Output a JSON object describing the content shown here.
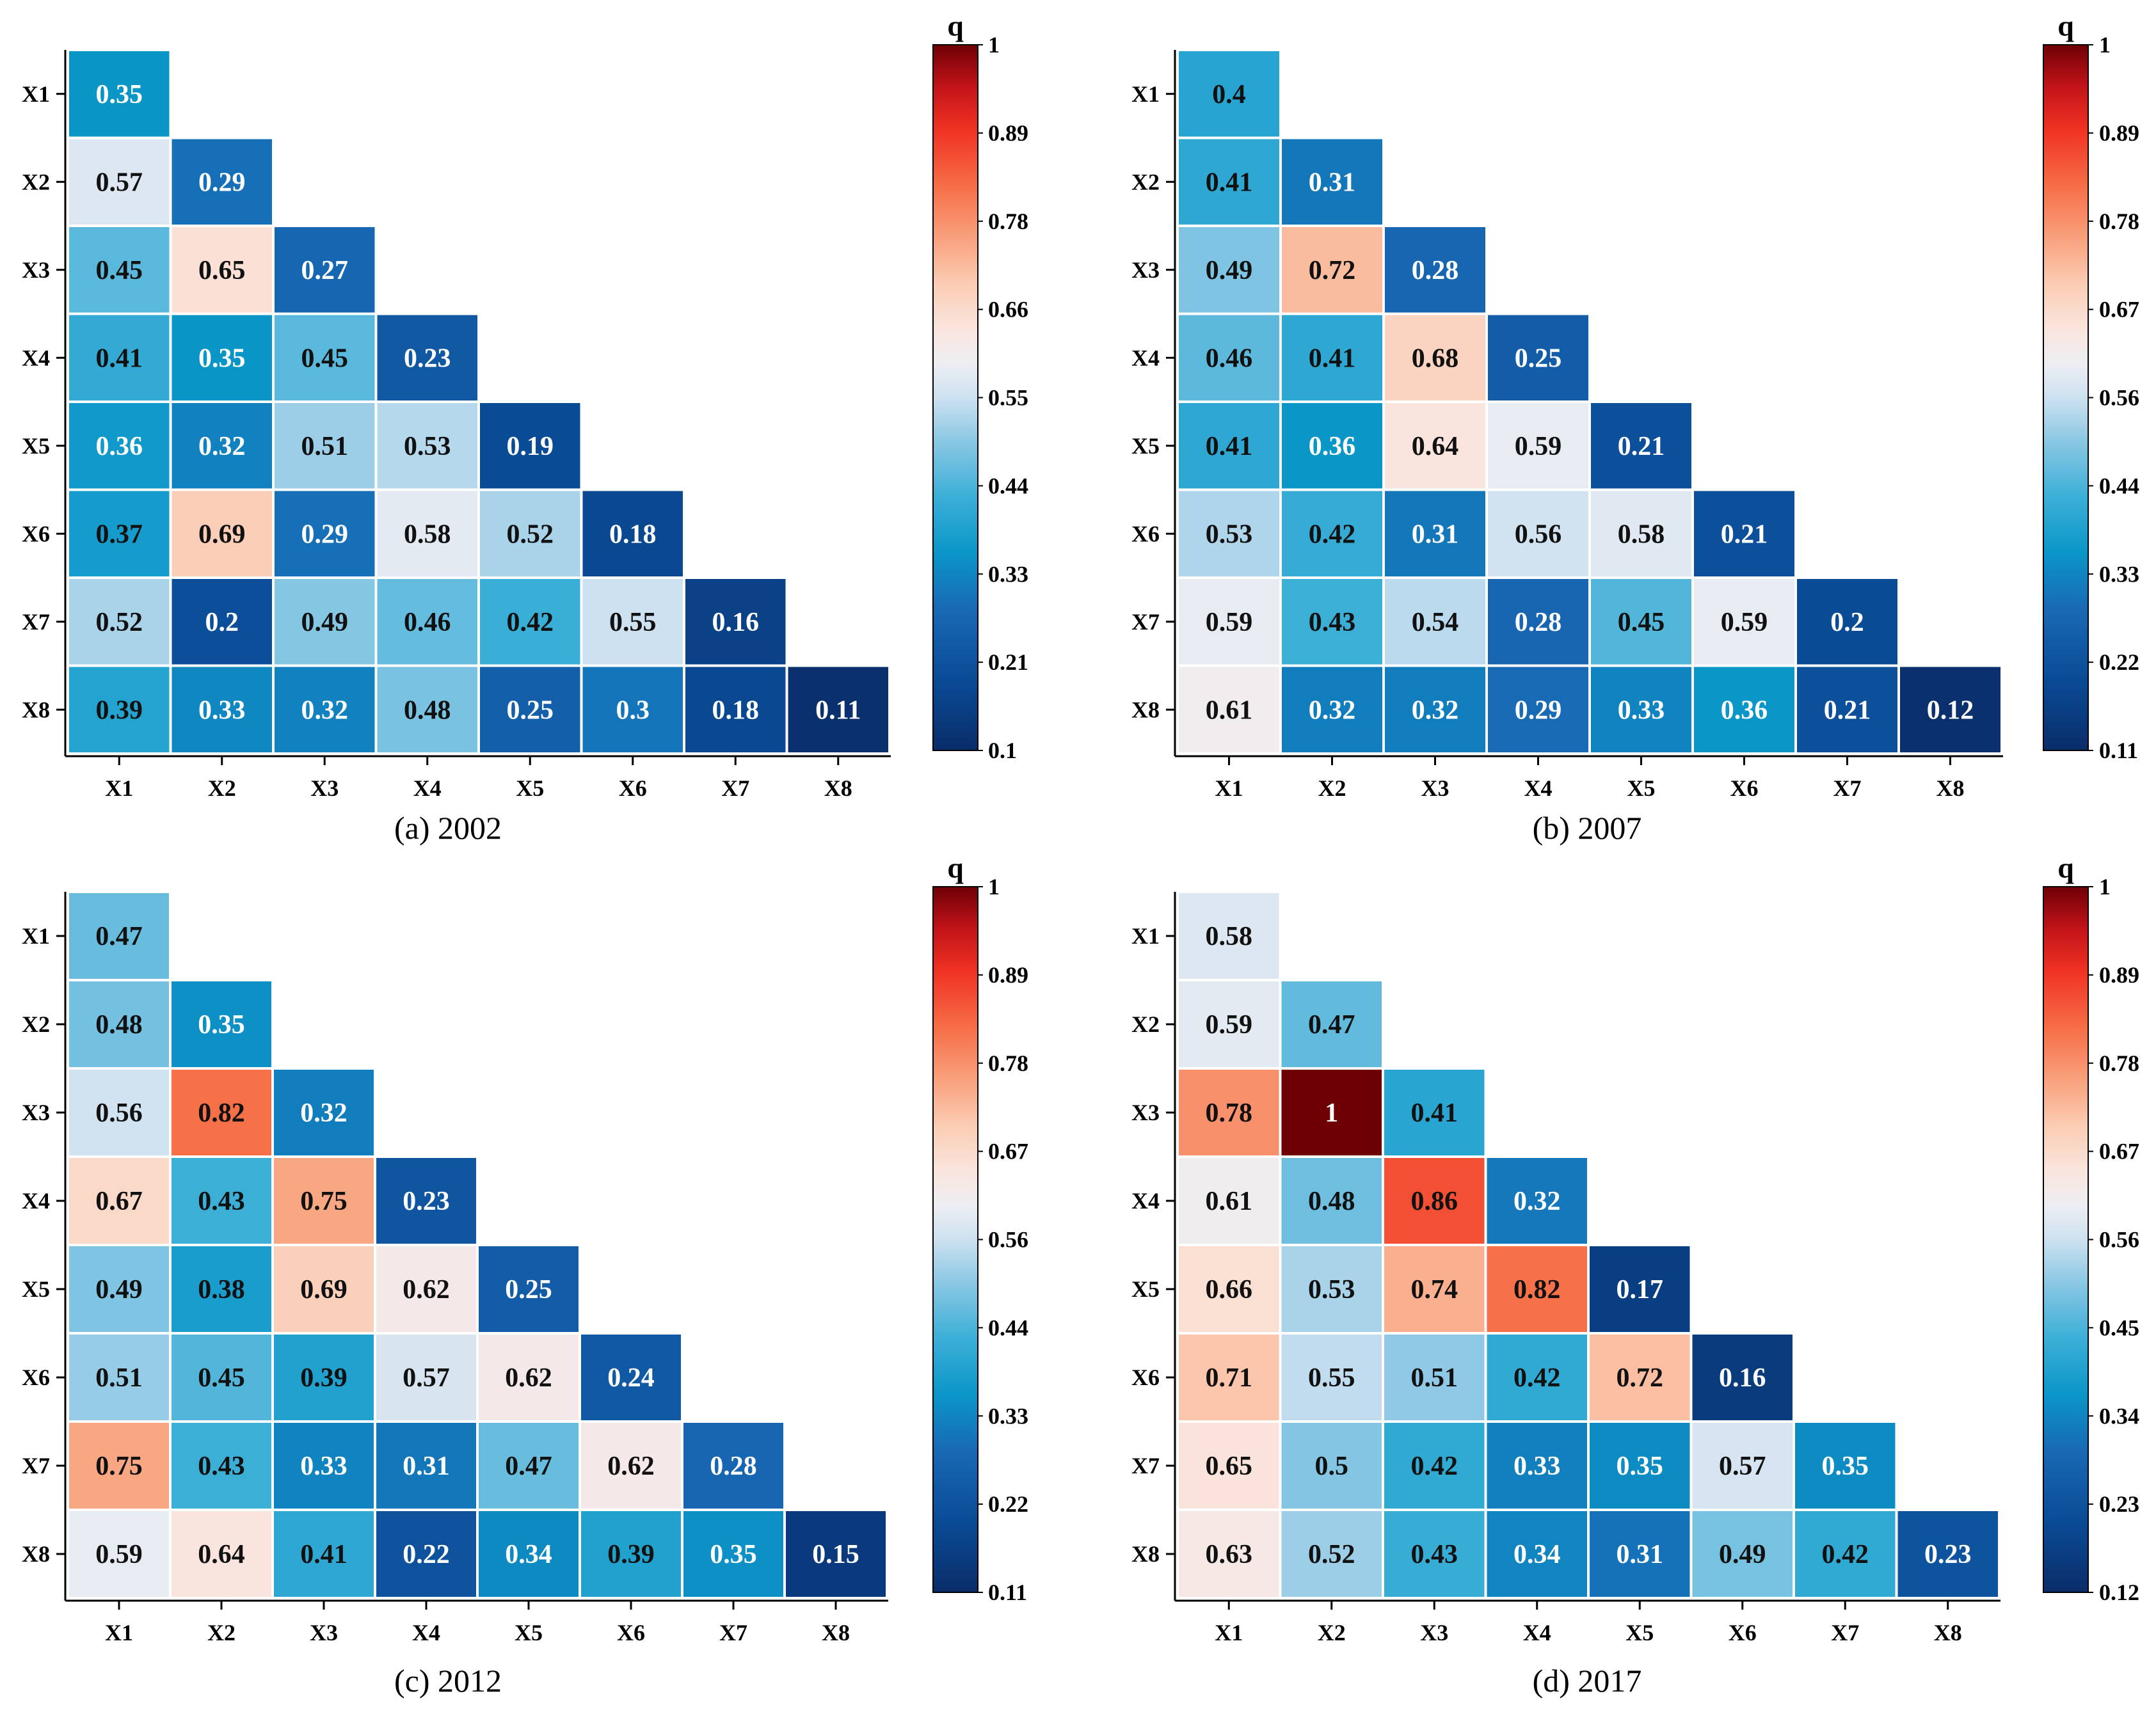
{
  "chart_data": [
    {
      "type": "heatmap",
      "title": "(a) 2002",
      "labels": [
        "X1",
        "X2",
        "X3",
        "X4",
        "X5",
        "X6",
        "X7",
        "X8"
      ],
      "values": [
        [
          0.35
        ],
        [
          0.57,
          0.29
        ],
        [
          0.45,
          0.65,
          0.27
        ],
        [
          0.41,
          0.35,
          0.45,
          0.23
        ],
        [
          0.36,
          0.32,
          0.51,
          0.53,
          0.19
        ],
        [
          0.37,
          0.69,
          0.29,
          0.58,
          0.52,
          0.18
        ],
        [
          0.52,
          0.2,
          0.49,
          0.46,
          0.42,
          0.55,
          0.16
        ],
        [
          0.39,
          0.33,
          0.32,
          0.48,
          0.25,
          0.3,
          0.18,
          0.11
        ]
      ],
      "colorbar": {
        "label": "q",
        "min": 0.1,
        "max": 1,
        "ticks": [
          "1",
          "0.89",
          "0.78",
          "0.66",
          "0.55",
          "0.44",
          "0.33",
          "0.21",
          "0.1"
        ]
      }
    },
    {
      "type": "heatmap",
      "title": "(b) 2007",
      "labels": [
        "X1",
        "X2",
        "X3",
        "X4",
        "X5",
        "X6",
        "X7",
        "X8"
      ],
      "values": [
        [
          0.4
        ],
        [
          0.41,
          0.31
        ],
        [
          0.49,
          0.72,
          0.28
        ],
        [
          0.46,
          0.41,
          0.68,
          0.25
        ],
        [
          0.41,
          0.36,
          0.64,
          0.59,
          0.21
        ],
        [
          0.53,
          0.42,
          0.31,
          0.56,
          0.58,
          0.21
        ],
        [
          0.59,
          0.43,
          0.54,
          0.28,
          0.45,
          0.59,
          0.2
        ],
        [
          0.61,
          0.32,
          0.32,
          0.29,
          0.33,
          0.36,
          0.21,
          0.12
        ]
      ],
      "colorbar": {
        "label": "q",
        "min": 0.11,
        "max": 1,
        "ticks": [
          "1",
          "0.89",
          "0.78",
          "0.67",
          "0.56",
          "0.44",
          "0.33",
          "0.22",
          "0.11"
        ]
      }
    },
    {
      "type": "heatmap",
      "title": "(c) 2012",
      "labels": [
        "X1",
        "X2",
        "X3",
        "X4",
        "X5",
        "X6",
        "X7",
        "X8"
      ],
      "values": [
        [
          0.47
        ],
        [
          0.48,
          0.35
        ],
        [
          0.56,
          0.82,
          0.32
        ],
        [
          0.67,
          0.43,
          0.75,
          0.23
        ],
        [
          0.49,
          0.38,
          0.69,
          0.62,
          0.25
        ],
        [
          0.51,
          0.45,
          0.39,
          0.57,
          0.62,
          0.24
        ],
        [
          0.75,
          0.43,
          0.33,
          0.31,
          0.47,
          0.62,
          0.28
        ],
        [
          0.59,
          0.64,
          0.41,
          0.22,
          0.34,
          0.39,
          0.35,
          0.15
        ]
      ],
      "colorbar": {
        "label": "q",
        "min": 0.11,
        "max": 1,
        "ticks": [
          "1",
          "0.89",
          "0.78",
          "0.67",
          "0.56",
          "0.44",
          "0.33",
          "0.22",
          "0.11"
        ]
      }
    },
    {
      "type": "heatmap",
      "title": "(d) 2017",
      "labels": [
        "X1",
        "X2",
        "X3",
        "X4",
        "X5",
        "X6",
        "X7",
        "X8"
      ],
      "values": [
        [
          0.58
        ],
        [
          0.59,
          0.47
        ],
        [
          0.78,
          1,
          0.41
        ],
        [
          0.61,
          0.48,
          0.86,
          0.32
        ],
        [
          0.66,
          0.53,
          0.74,
          0.82,
          0.17
        ],
        [
          0.71,
          0.55,
          0.51,
          0.42,
          0.72,
          0.16
        ],
        [
          0.65,
          0.5,
          0.42,
          0.33,
          0.35,
          0.57,
          0.35
        ],
        [
          0.63,
          0.52,
          0.43,
          0.34,
          0.31,
          0.49,
          0.42,
          0.23
        ]
      ],
      "colorbar": {
        "label": "q",
        "min": 0.12,
        "max": 1,
        "ticks": [
          "1",
          "0.89",
          "0.78",
          "0.67",
          "0.56",
          "0.45",
          "0.34",
          "0.23",
          "0.12"
        ]
      }
    }
  ]
}
